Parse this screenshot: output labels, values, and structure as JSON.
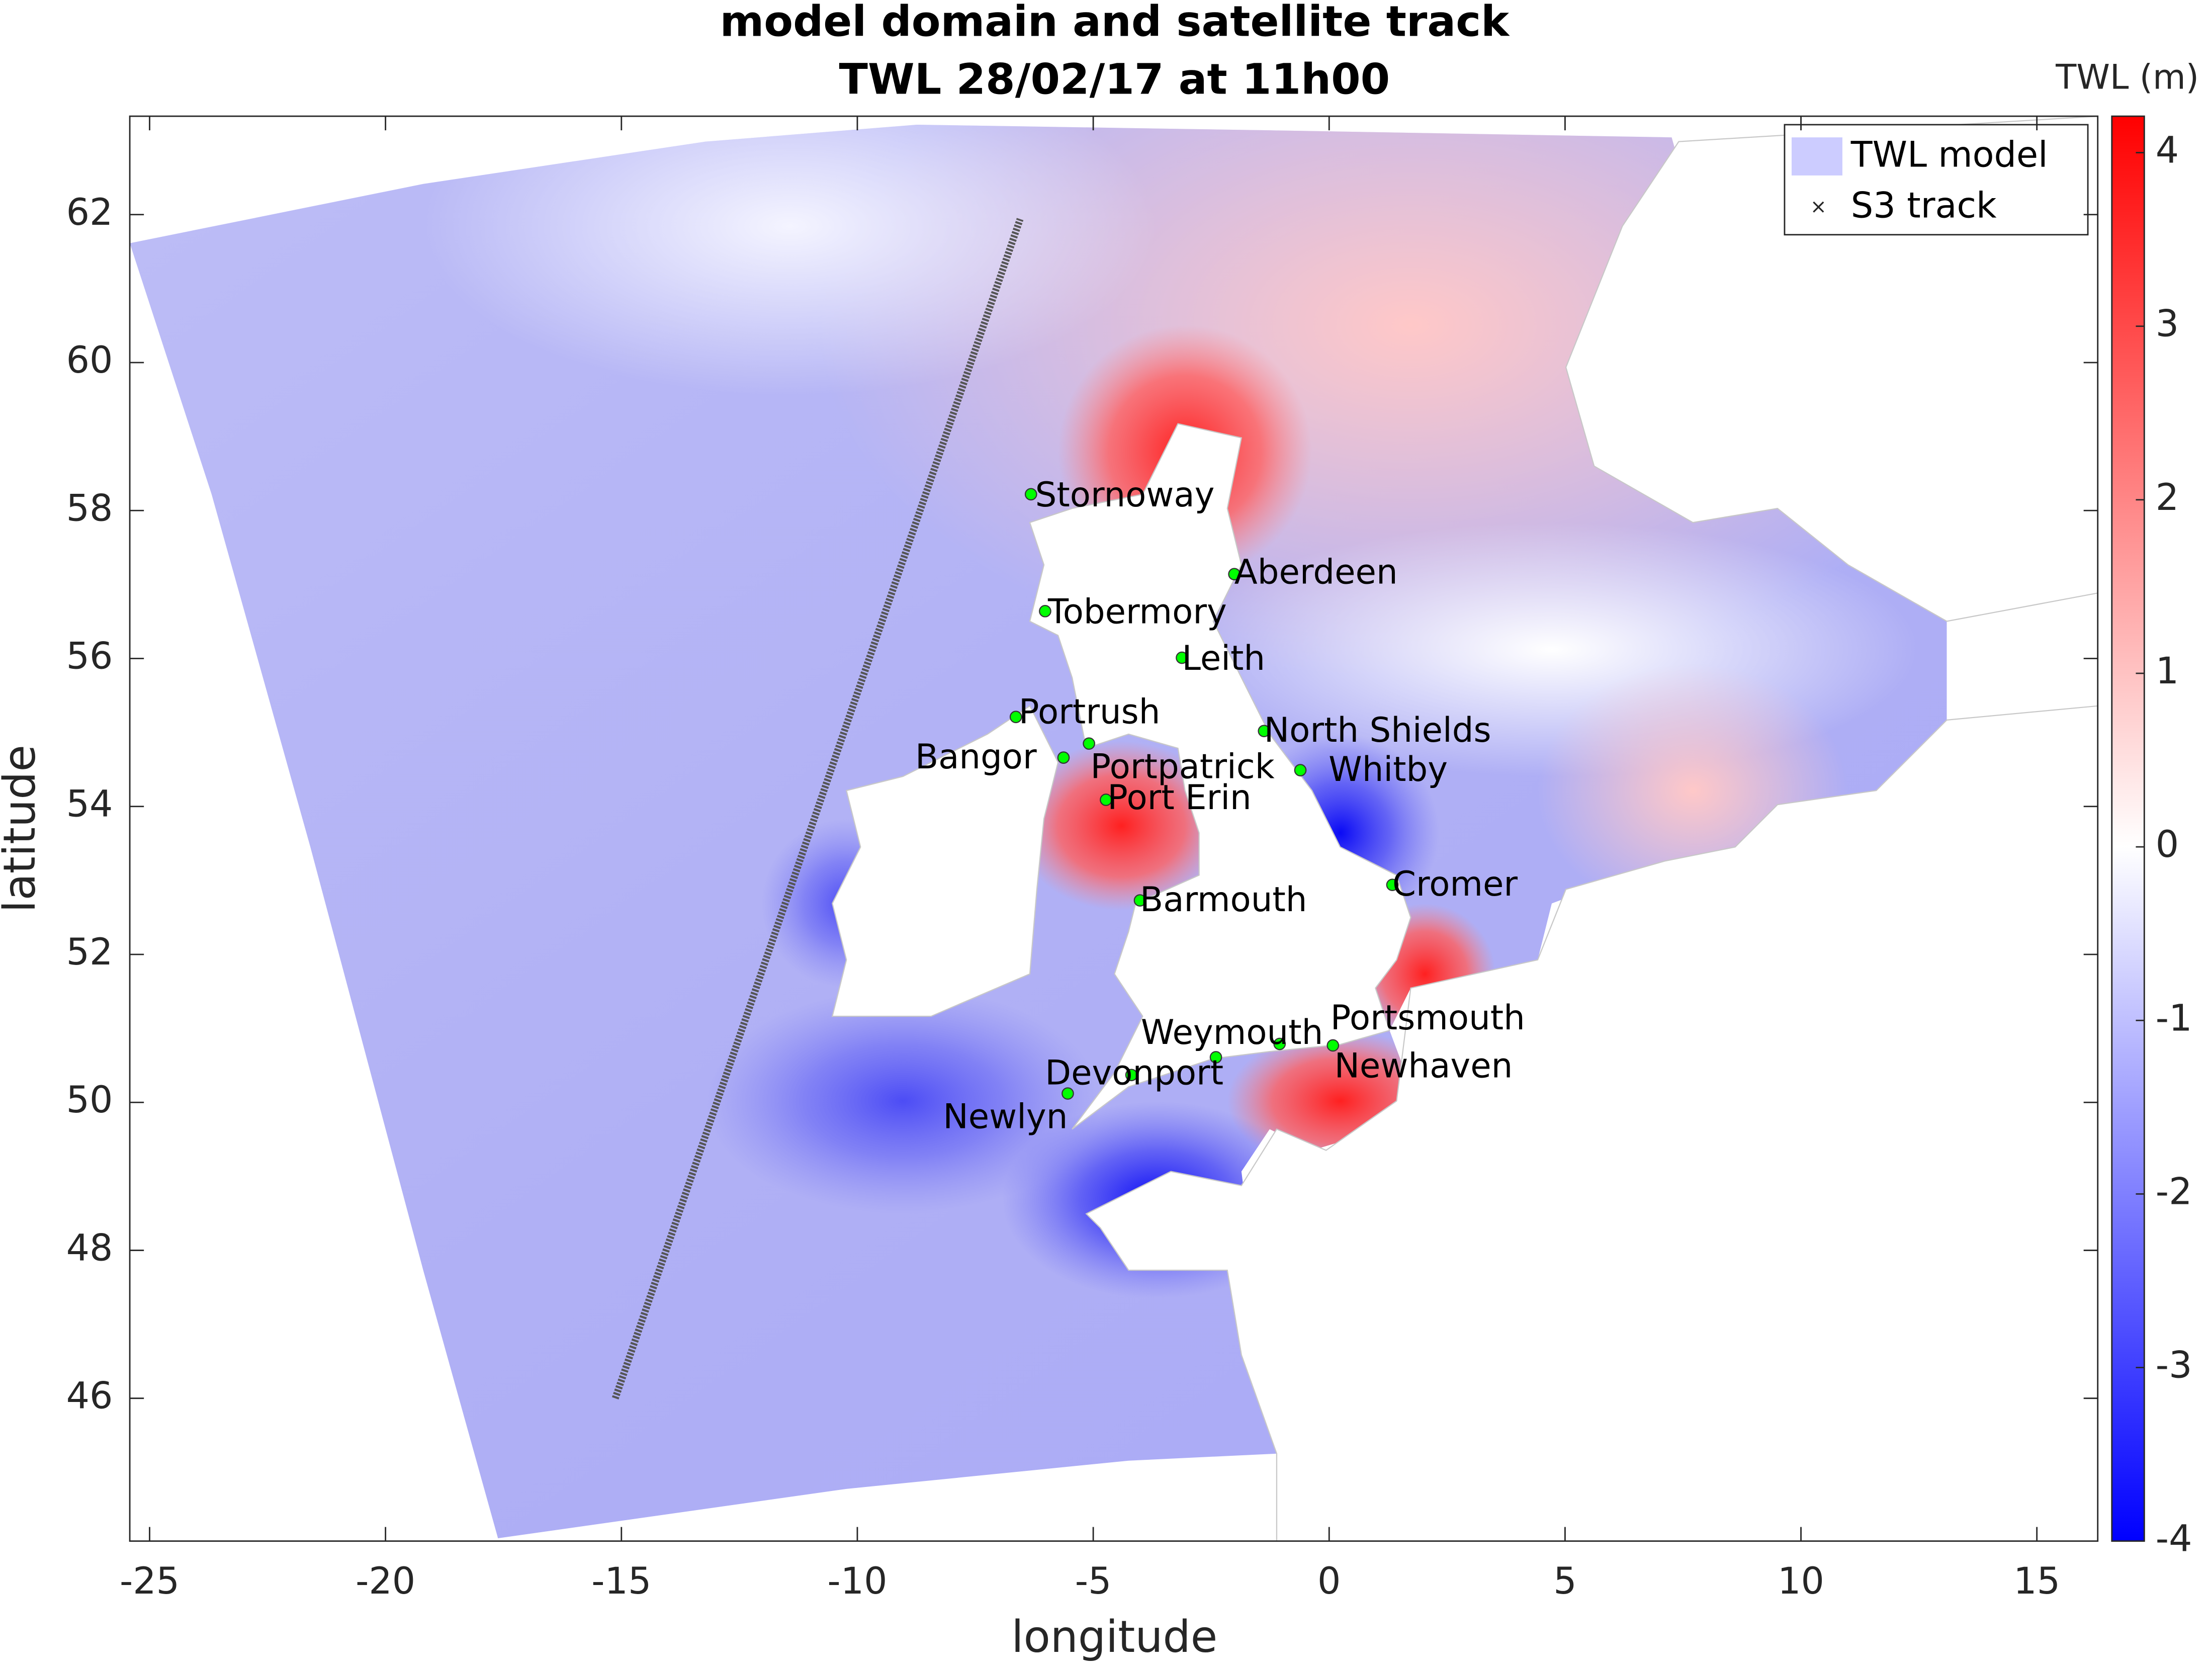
{
  "chart_data": {
    "type": "map",
    "title": [
      "model domain and satellite track",
      "TWL 28/02/17 at 11h00"
    ],
    "xlabel": "longitude",
    "ylabel": "latitude",
    "xlim": [
      -25.42,
      16.29
    ],
    "ylim": [
      44.07,
      63.33
    ],
    "xticks": [
      -25,
      -20,
      -15,
      -10,
      -5,
      0,
      5,
      10,
      15
    ],
    "yticks": [
      46,
      48,
      50,
      52,
      54,
      56,
      58,
      60,
      62
    ],
    "legend": "northeast",
    "series": [
      {
        "name": "TWL model",
        "color": "#ccccff"
      },
      {
        "name": "S3 track",
        "color": "#000000",
        "marker": "x",
        "x": [
          -15.13,
          -6.55
        ],
        "y": [
          46.0,
          61.94
        ]
      }
    ],
    "colorbar": {
      "label": "TWL (m)",
      "clim": [
        -4,
        4.21
      ],
      "ticks": [
        -4,
        -3,
        -2,
        -1,
        0,
        1,
        2,
        3,
        4
      ],
      "colors": [
        "#0000ff",
        "#ffffff",
        "#ff0000"
      ]
    },
    "station_color": "#00ff00",
    "stations": [
      {
        "name": "Stornoway",
        "lon": -6.32,
        "lat": 58.22
      },
      {
        "name": "Aberdeen",
        "lon": -2.01,
        "lat": 57.14
      },
      {
        "name": "Tobermory",
        "lon": -6.02,
        "lat": 56.64
      },
      {
        "name": "Leith",
        "lon": -3.12,
        "lat": 56.01
      },
      {
        "name": "Portrush",
        "lon": -6.64,
        "lat": 55.21
      },
      {
        "name": "Bangor",
        "lon": -5.63,
        "lat": 54.66
      },
      {
        "name": "Portpatrick",
        "lon": -5.09,
        "lat": 54.85
      },
      {
        "name": "Port Erin",
        "lon": -4.73,
        "lat": 54.09
      },
      {
        "name": "North Shields",
        "lon": -1.38,
        "lat": 55.02
      },
      {
        "name": "Whitby",
        "lon": -0.61,
        "lat": 54.49
      },
      {
        "name": "Barmouth",
        "lon": -4.01,
        "lat": 52.73
      },
      {
        "name": "Cromer",
        "lon": 1.34,
        "lat": 52.94
      },
      {
        "name": "Portsmouth",
        "lon": -1.05,
        "lat": 50.79
      },
      {
        "name": "Weymouth",
        "lon": -2.4,
        "lat": 50.61
      },
      {
        "name": "Newhaven",
        "lon": 0.08,
        "lat": 50.77
      },
      {
        "name": "Devonport",
        "lon": -4.19,
        "lat": 50.37
      },
      {
        "name": "Newlyn",
        "lon": -5.54,
        "lat": 50.12
      }
    ]
  }
}
